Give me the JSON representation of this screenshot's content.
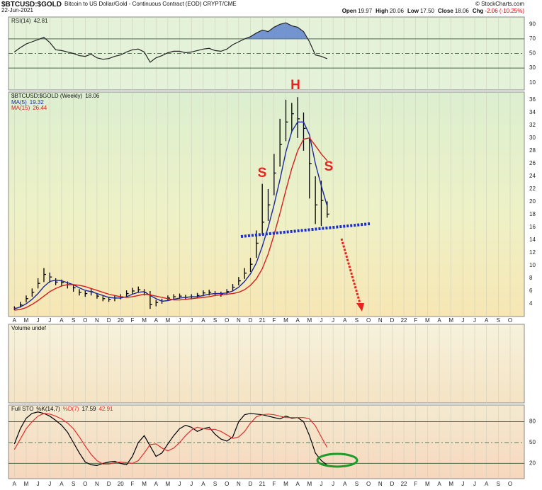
{
  "header": {
    "symbol": "$BTCUSD:$GOLD",
    "description": "Bitcoin to US Dollar/Gold - Continuous Contract (EOD) CRYPT/CME",
    "date": "22-Jun-2021",
    "credit": "© StockCharts.com",
    "quote": [
      [
        "Open",
        "19.97"
      ],
      [
        "High",
        "20.06"
      ],
      [
        "Low",
        "17.50"
      ],
      [
        "Close",
        "18.06"
      ],
      [
        "Chg",
        "-2.06 (-10.25%)"
      ]
    ]
  },
  "chart_data": [
    {
      "type": "line",
      "series": [
        {
          "name": "RSI(14)",
          "color": "#222222",
          "values": [
            52,
            58,
            63,
            66,
            69,
            72,
            65,
            55,
            54,
            52,
            50,
            47,
            46,
            49,
            44,
            42,
            43,
            46,
            48,
            52,
            55,
            56,
            52,
            38,
            44,
            47,
            51,
            53,
            53,
            51,
            52,
            54,
            56,
            57,
            54,
            53,
            56,
            62,
            66,
            70,
            73,
            78,
            82,
            80,
            86,
            90,
            92,
            88,
            86,
            80,
            66,
            48,
            46,
            42.81
          ]
        }
      ],
      "ylim": [
        0,
        100
      ],
      "yticks": [
        10,
        30,
        50,
        70,
        90
      ],
      "reference_lines": [
        30,
        50,
        70
      ],
      "shade_above": 70,
      "shade_color": "#5f84cc"
    },
    {
      "type": "ohlc",
      "title": "$BTCUSD:$GOLD (Weekly)",
      "color": "#000000",
      "x": [
        0,
        0.5,
        1,
        1.5,
        2,
        2.5,
        3,
        3.5,
        4,
        4.5,
        5,
        5.5,
        6,
        6.5,
        7,
        7.5,
        8,
        8.5,
        9,
        9.5,
        10,
        10.5,
        11,
        11.5,
        12,
        12.5,
        13,
        13.5,
        14,
        14.5,
        15,
        15.5,
        16,
        16.5,
        17,
        17.5,
        18,
        18.5,
        19,
        19.5,
        20,
        20.5,
        21,
        21.5,
        22,
        22.5,
        23,
        23.5,
        24,
        24.5,
        25,
        25.5,
        26,
        26.5
      ],
      "high": [
        3.6,
        4.3,
        5.3,
        6.4,
        8.0,
        9.6,
        8.9,
        8.0,
        7.8,
        7.5,
        7.0,
        6.3,
        6.0,
        6.3,
        5.6,
        5.2,
        5.1,
        5.3,
        5.5,
        6.1,
        6.5,
        6.7,
        6.3,
        6.0,
        4.6,
        4.8,
        5.3,
        5.5,
        5.6,
        5.4,
        5.5,
        5.7,
        6.1,
        6.2,
        6.0,
        5.9,
        6.3,
        7.1,
        8.2,
        9.6,
        11.2,
        15.5,
        22.8,
        22.0,
        27.5,
        33.0,
        36.0,
        35.5,
        36.4,
        34.0,
        30.0,
        24.0,
        23.3,
        20.06
      ],
      "low": [
        3.0,
        3.4,
        4.2,
        5.1,
        6.4,
        7.4,
        7.3,
        6.9,
        6.7,
        6.4,
        5.9,
        5.3,
        5.1,
        5.3,
        4.8,
        4.4,
        4.3,
        4.4,
        4.7,
        5.0,
        5.5,
        5.7,
        5.3,
        3.2,
        3.6,
        4.0,
        4.5,
        4.7,
        4.8,
        4.6,
        4.7,
        4.9,
        5.2,
        5.3,
        5.2,
        5.1,
        5.4,
        6.0,
        6.9,
        7.9,
        9.0,
        11.2,
        14.8,
        17.0,
        21.0,
        25.5,
        29.5,
        31.0,
        30.0,
        28.0,
        20.5,
        16.5,
        16.2,
        17.5
      ],
      "close": [
        3.3,
        3.8,
        4.8,
        5.8,
        7.2,
        8.6,
        8.2,
        7.4,
        7.3,
        7.0,
        6.5,
        5.8,
        5.6,
        5.9,
        5.2,
        4.8,
        4.7,
        4.9,
        5.1,
        5.6,
        6.0,
        6.2,
        5.8,
        3.9,
        4.2,
        4.4,
        4.9,
        5.1,
        5.2,
        5.0,
        5.1,
        5.3,
        5.7,
        5.8,
        5.6,
        5.5,
        5.9,
        6.6,
        7.6,
        8.8,
        10.2,
        13.5,
        16.8,
        19.5,
        24.5,
        29.0,
        32.5,
        33.8,
        33.0,
        31.5,
        26.0,
        19.5,
        20.2,
        18.06
      ],
      "series": [
        {
          "name": "MA(5)",
          "color": "#1c2a9c",
          "values": [
            3.2,
            3.5,
            4.0,
            4.7,
            5.6,
            6.7,
            7.5,
            7.7,
            7.6,
            7.3,
            7.0,
            6.5,
            6.1,
            5.9,
            5.6,
            5.3,
            5.0,
            4.9,
            4.9,
            5.1,
            5.5,
            5.8,
            5.9,
            5.3,
            4.8,
            4.4,
            4.5,
            4.7,
            4.9,
            5.0,
            5.1,
            5.1,
            5.3,
            5.5,
            5.6,
            5.6,
            5.7,
            6.0,
            6.6,
            7.5,
            8.7,
            10.4,
            13.0,
            16.0,
            19.5,
            23.5,
            27.8,
            31.0,
            32.5,
            32.5,
            30.5,
            26.0,
            22.5,
            19.32
          ]
        },
        {
          "name": "MA(15)",
          "color": "#d42020",
          "values": [
            3.0,
            3.1,
            3.4,
            3.9,
            4.5,
            5.2,
            5.9,
            6.4,
            6.8,
            7.0,
            7.0,
            6.9,
            6.7,
            6.4,
            6.1,
            5.8,
            5.5,
            5.3,
            5.1,
            5.0,
            5.1,
            5.3,
            5.5,
            5.4,
            5.2,
            5.0,
            4.8,
            4.6,
            4.6,
            4.7,
            4.8,
            4.9,
            5.0,
            5.1,
            5.3,
            5.4,
            5.5,
            5.6,
            5.8,
            6.2,
            6.9,
            7.9,
            9.5,
            11.8,
            14.8,
            18.2,
            21.8,
            25.2,
            28.0,
            29.8,
            30.0,
            28.8,
            27.5,
            26.44
          ]
        }
      ],
      "ylim": [
        2,
        37.2
      ],
      "yticks": [
        4,
        6,
        8,
        10,
        12,
        14,
        16,
        18,
        20,
        22,
        24,
        26,
        28,
        30,
        32,
        34,
        36
      ],
      "grid": true,
      "xlim": [
        -0.5,
        43.2
      ],
      "xticks": [
        {
          "value": 0,
          "label": "A"
        },
        {
          "value": 1,
          "label": "M"
        },
        {
          "value": 2,
          "label": "J"
        },
        {
          "value": 3,
          "label": "J"
        },
        {
          "value": 4,
          "label": "A"
        },
        {
          "value": 5,
          "label": "S"
        },
        {
          "value": 6,
          "label": "O"
        },
        {
          "value": 7,
          "label": "N"
        },
        {
          "value": 8,
          "label": "D"
        },
        {
          "value": 9,
          "label": "20"
        },
        {
          "value": 10,
          "label": "F"
        },
        {
          "value": 11,
          "label": "M"
        },
        {
          "value": 12,
          "label": "A"
        },
        {
          "value": 13,
          "label": "M"
        },
        {
          "value": 14,
          "label": "J"
        },
        {
          "value": 15,
          "label": "J"
        },
        {
          "value": 16,
          "label": "A"
        },
        {
          "value": 17,
          "label": "S"
        },
        {
          "value": 18,
          "label": "O"
        },
        {
          "value": 19,
          "label": "N"
        },
        {
          "value": 20,
          "label": "D"
        },
        {
          "value": 21,
          "label": "21"
        },
        {
          "value": 22,
          "label": "F"
        },
        {
          "value": 23,
          "label": "M"
        },
        {
          "value": 24,
          "label": "A"
        },
        {
          "value": 25,
          "label": "M"
        },
        {
          "value": 26,
          "label": "J"
        },
        {
          "value": 27,
          "label": "J"
        },
        {
          "value": 28,
          "label": "A"
        },
        {
          "value": 29,
          "label": "S"
        },
        {
          "value": 30,
          "label": "O"
        },
        {
          "value": 31,
          "label": "N"
        },
        {
          "value": 32,
          "label": "D"
        },
        {
          "value": 33,
          "label": "22"
        },
        {
          "value": 34,
          "label": "F"
        },
        {
          "value": 35,
          "label": "M"
        },
        {
          "value": 36,
          "label": "A"
        },
        {
          "value": 37,
          "label": "M"
        },
        {
          "value": 38,
          "label": "J"
        },
        {
          "value": 39,
          "label": "J"
        },
        {
          "value": 40,
          "label": "A"
        },
        {
          "value": 41,
          "label": "S"
        },
        {
          "value": 42,
          "label": "O"
        }
      ],
      "annotations": [
        "S",
        "H",
        "S"
      ]
    },
    {
      "type": "volume",
      "title": "Volume undef"
    },
    {
      "type": "line",
      "title": "Full STO",
      "series": [
        {
          "name": "%K(14,7)",
          "color": "#000000",
          "values": [
            48,
            70,
            85,
            92,
            94,
            92,
            88,
            82,
            75,
            65,
            50,
            35,
            22,
            18,
            17,
            20,
            22,
            23,
            20,
            18,
            30,
            50,
            60,
            45,
            30,
            35,
            48,
            60,
            70,
            75,
            72,
            66,
            70,
            72,
            62,
            55,
            52,
            58,
            80,
            90,
            92,
            91,
            90,
            88,
            86,
            84,
            88,
            85,
            86,
            80,
            60,
            35,
            24,
            17.59
          ]
        },
        {
          "name": "%D(7)",
          "color": "#e03030",
          "values": [
            40,
            55,
            70,
            80,
            88,
            92,
            91,
            88,
            84,
            78,
            70,
            58,
            45,
            33,
            24,
            19,
            19,
            21,
            22,
            21,
            20,
            24,
            35,
            47,
            48,
            42,
            38,
            42,
            50,
            60,
            68,
            72,
            70,
            69,
            69,
            66,
            61,
            56,
            58,
            66,
            78,
            87,
            90,
            91,
            90,
            88,
            86,
            86,
            86,
            86,
            84,
            74,
            58,
            42.91
          ]
        }
      ],
      "ylim": [
        -2,
        104
      ],
      "yticks": [
        20,
        50,
        80
      ],
      "reference_lines": [
        20,
        50,
        80
      ]
    }
  ]
}
